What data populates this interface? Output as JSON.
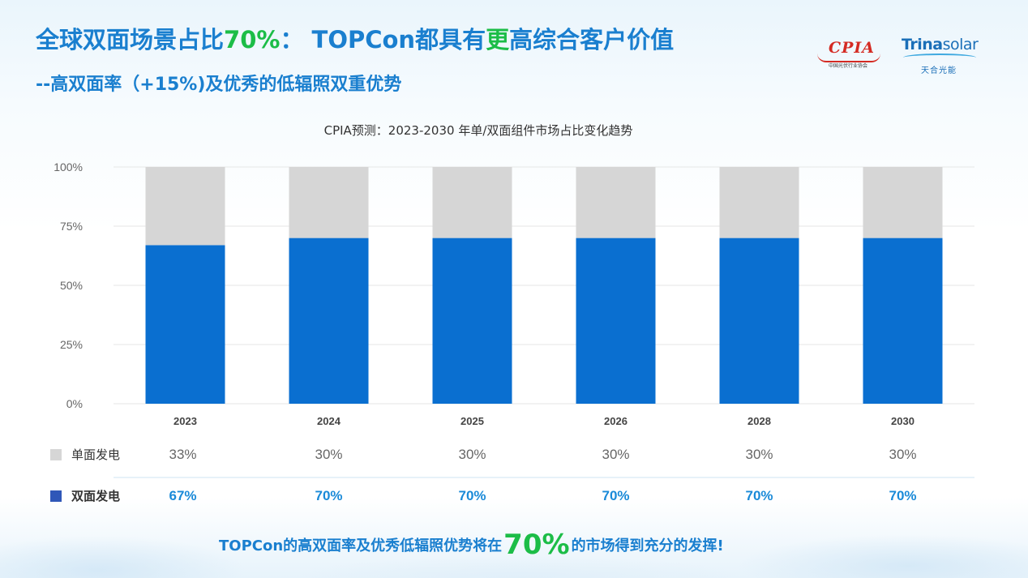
{
  "slide": {
    "title_part1": "全球双面场景占比",
    "title_highlight1": "70%",
    "title_part2": "： TOPCon都具有",
    "title_highlight2": "更",
    "title_part3": "高综合客户价值",
    "subtitle": "--高双面率（+15%)及优秀的低辐照双重优势",
    "closing_part1": "TOPCon的高双面率及优秀低辐照优势将在",
    "closing_highlight": "70%",
    "closing_part2": "的市场得到充分的发挥!"
  },
  "logos": {
    "cpia_word": "CPIA",
    "cpia_sub": "中国光伏行业协会",
    "trina_word_bold": "Trina",
    "trina_word_light": "solar",
    "trina_cn": "天合光能"
  },
  "colors": {
    "bifacial": "#0a6fd0",
    "monofacial": "#d6d6d6",
    "title_blue": "#1a7fcf",
    "highlight_green": "#1cbd47"
  },
  "chart_data": {
    "type": "bar",
    "stacked": true,
    "percent": true,
    "title": "CPIA预测：2023-2030 年单/双面组件市场占比变化趋势",
    "categories": [
      "2023",
      "2024",
      "2025",
      "2026",
      "2028",
      "2030"
    ],
    "yticks": [
      "0%",
      "25%",
      "50%",
      "75%",
      "100%"
    ],
    "ylim": [
      0,
      100
    ],
    "grid": true,
    "series": [
      {
        "name": "双面发电",
        "color": "#0a6fd0",
        "values": [
          67,
          70,
          70,
          70,
          70,
          70
        ],
        "labels": [
          "67%",
          "70%",
          "70%",
          "70%",
          "70%",
          "70%"
        ]
      },
      {
        "name": "单面发电",
        "color": "#d6d6d6",
        "values": [
          33,
          30,
          30,
          30,
          30,
          30
        ],
        "labels": [
          "33%",
          "30%",
          "30%",
          "30%",
          "30%",
          "30%"
        ]
      }
    ]
  }
}
